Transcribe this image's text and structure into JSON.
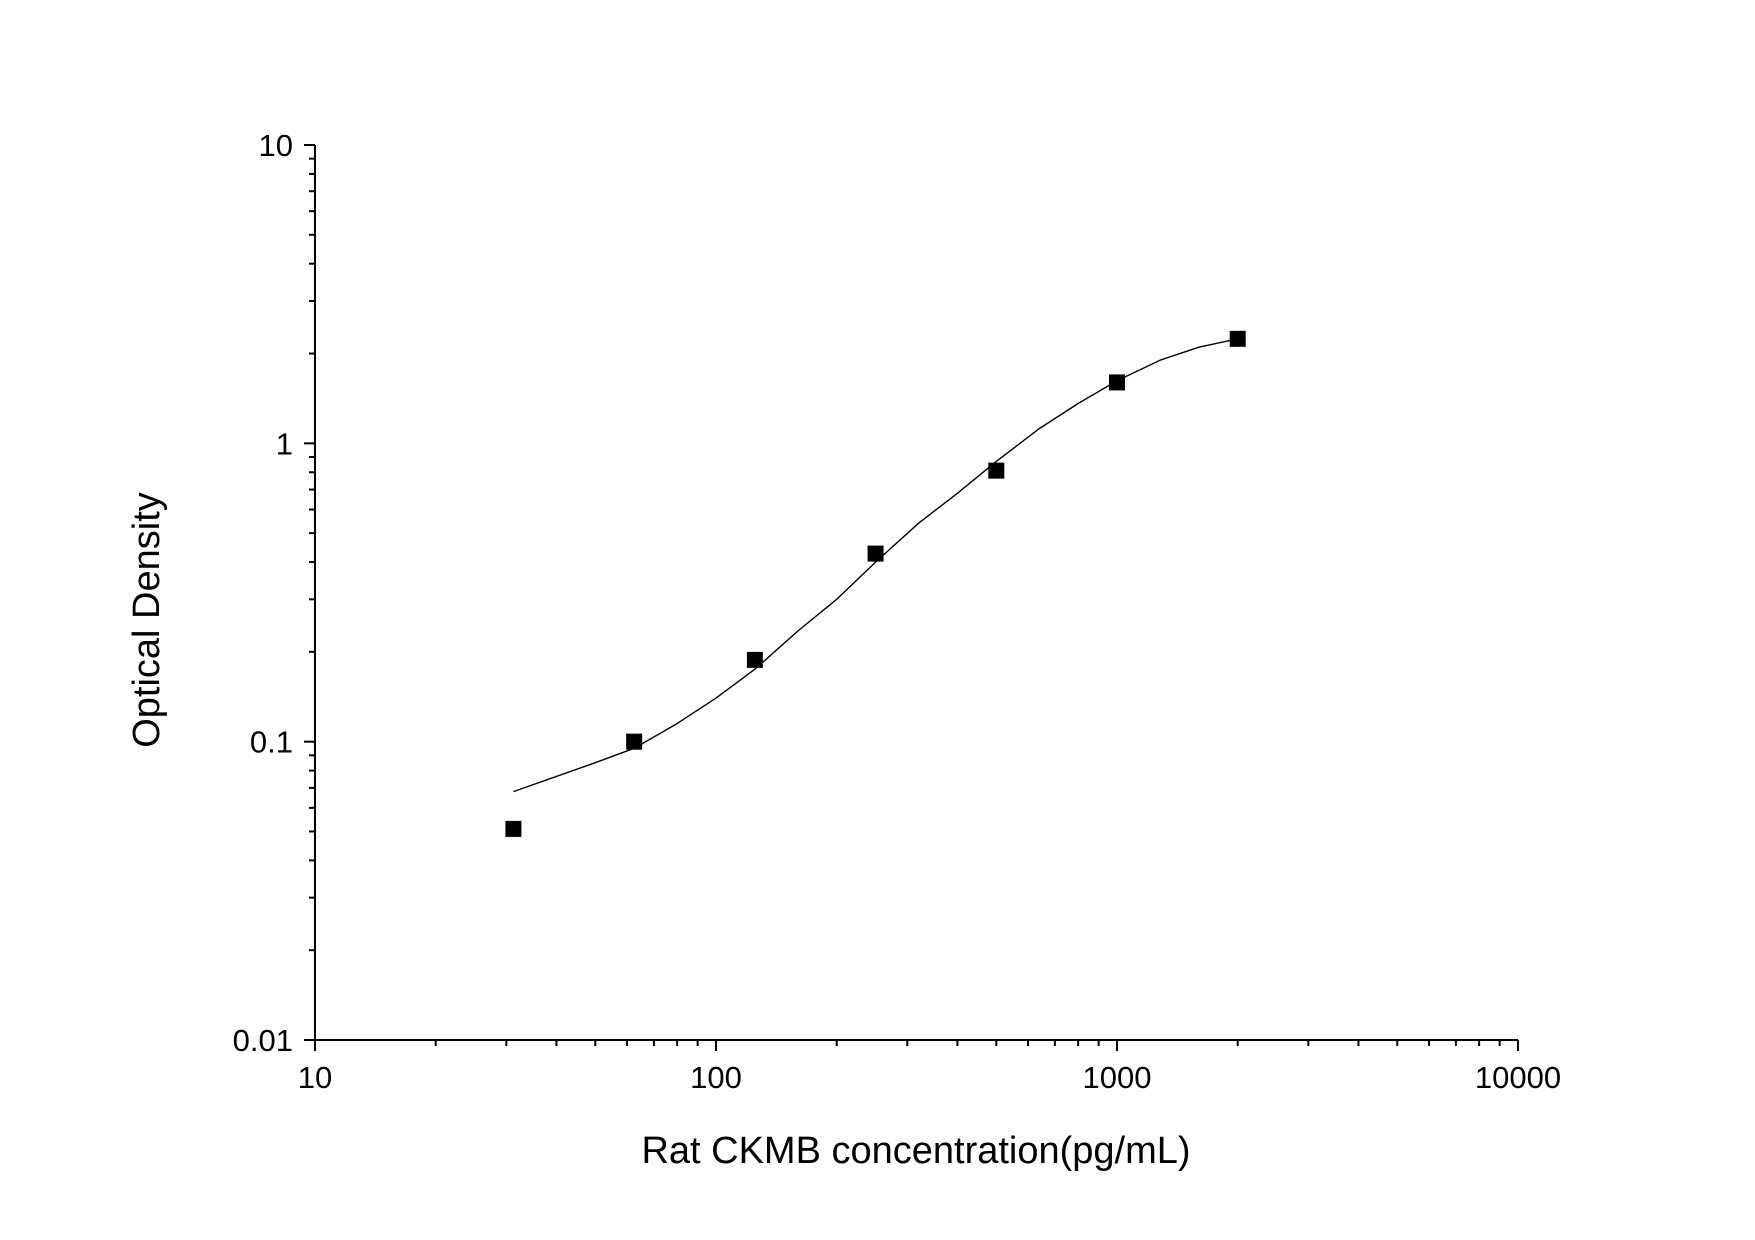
{
  "chart_data": {
    "type": "scatter",
    "title": "",
    "xlabel": "Rat CKMB concentration(pg/mL)",
    "ylabel": "Optical Density",
    "xscale": "log",
    "yscale": "log",
    "xlim": [
      10,
      10000
    ],
    "ylim": [
      0.01,
      10
    ],
    "x_ticks": [
      "10",
      "100",
      "1000",
      "10000"
    ],
    "y_ticks": [
      "0.01",
      "0.1",
      "1",
      "10"
    ],
    "grid": false,
    "legend": "none",
    "series": [
      {
        "type": "scatter",
        "marker": "square",
        "color": "#000000",
        "x": [
          31.25,
          62.5,
          125,
          250,
          500,
          1000,
          2000
        ],
        "y": [
          0.051,
          0.1,
          0.188,
          0.427,
          0.81,
          1.6,
          2.24
        ]
      },
      {
        "type": "line",
        "color": "#000000",
        "x": [
          31.25,
          50,
          62.5,
          80,
          100,
          125,
          160,
          200,
          250,
          320,
          400,
          500,
          640,
          800,
          1000,
          1280,
          1600,
          2000
        ],
        "y": [
          0.068,
          0.085,
          0.095,
          0.115,
          0.14,
          0.175,
          0.235,
          0.3,
          0.4,
          0.54,
          0.68,
          0.87,
          1.12,
          1.36,
          1.62,
          1.9,
          2.1,
          2.24
        ]
      }
    ]
  }
}
